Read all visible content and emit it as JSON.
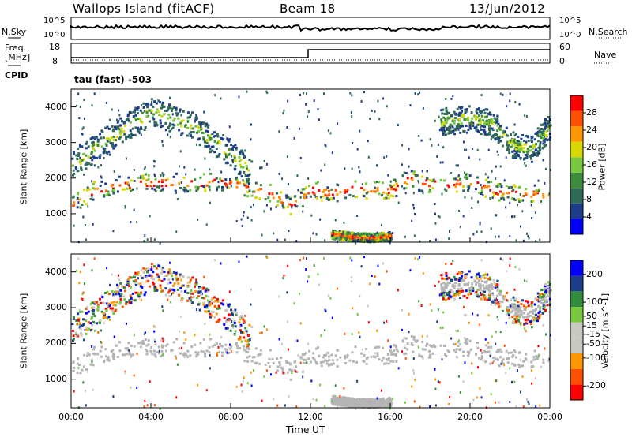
{
  "header": {
    "site": "Wallops Island (fitACF)",
    "beam": "Beam 18",
    "date": "13/Jun/2012"
  },
  "top_panels": {
    "nsky_label": "N.Sky",
    "nsearch_label": "N.Search",
    "nsky_ticks": [
      "10^5",
      "10^0"
    ],
    "nsearch_ticks": [
      "10^5",
      "10^0"
    ],
    "freq_label_line1": "Freq.",
    "freq_label_line2": "[MHz]",
    "freq_ticks": [
      "18",
      "8"
    ],
    "nave_label": "Nave",
    "nave_ticks": [
      "60",
      "0"
    ],
    "cpid_label": "CPID",
    "cpid_text": "tau (fast) -503"
  },
  "colors": {
    "power_scale": [
      "#0000ff",
      "#1e3c8c",
      "#2f6a57",
      "#3d8c3c",
      "#76c83c",
      "#d8d800",
      "#ff9600",
      "#ff5000",
      "#ff0000"
    ],
    "velocity_scale": [
      "#ff0000",
      "#ff5000",
      "#ff9600",
      "#c8c8c0",
      "#c8c8c0",
      "#76c83c",
      "#2f8c3c",
      "#1e3c8c",
      "#0000ff"
    ],
    "ground_scatter": "#b4b4b4"
  },
  "chart_data": [
    {
      "type": "heatmap",
      "title": "",
      "xlabel": "Time UT",
      "ylabel": "Slant Range [km]",
      "x_ticks": [
        "00:00",
        "04:00",
        "08:00",
        "12:00",
        "16:00",
        "20:00",
        "00:00"
      ],
      "y_ticks": [
        1000,
        2000,
        3000,
        4000
      ],
      "ylim": [
        200,
        4500
      ],
      "xlim_hours": [
        0,
        24
      ],
      "colorbar": {
        "label": "Power [dB]",
        "ticks": [
          4,
          8,
          12,
          16,
          20,
          24,
          28
        ],
        "range": [
          0,
          32
        ]
      },
      "bands": [
        {
          "name": "main",
          "points": [
            [
              0,
              1250
            ],
            [
              1,
              1650
            ],
            [
              2,
              1800
            ],
            [
              4,
              1900
            ],
            [
              6,
              1900
            ],
            [
              8,
              1900
            ],
            [
              10,
              1600
            ],
            [
              11,
              1250
            ],
            [
              11.6,
              1500
            ],
            [
              12,
              1700
            ],
            [
              13,
              1600
            ],
            [
              14,
              1700
            ],
            [
              16,
              1700
            ],
            [
              17,
              2000
            ],
            [
              18,
              1850
            ],
            [
              20,
              1900
            ],
            [
              21,
              1700
            ],
            [
              22,
              1600
            ],
            [
              24,
              1550
            ]
          ]
        },
        {
          "name": "upper",
          "points": [
            [
              0,
              2400
            ],
            [
              2,
              3200
            ],
            [
              4,
              3900
            ],
            [
              6,
              3500
            ],
            [
              8,
              2700
            ],
            [
              9,
              2200
            ]
          ]
        },
        {
          "name": "late",
          "points": [
            [
              18.5,
              3600
            ],
            [
              20,
              3700
            ],
            [
              21,
              3600
            ],
            [
              22,
              3000
            ],
            [
              23,
              2800
            ],
            [
              24,
              3500
            ]
          ]
        },
        {
          "name": "low",
          "points": [
            [
              13,
              450
            ],
            [
              14,
              380
            ],
            [
              15,
              350
            ],
            [
              16,
              400
            ]
          ]
        }
      ]
    },
    {
      "type": "heatmap",
      "title": "",
      "xlabel": "Time UT",
      "ylabel": "Slant Range [km]",
      "x_ticks": [
        "00:00",
        "04:00",
        "08:00",
        "12:00",
        "16:00",
        "20:00",
        "00:00"
      ],
      "y_ticks": [
        1000,
        2000,
        3000,
        4000
      ],
      "ylim": [
        200,
        4500
      ],
      "xlim_hours": [
        0,
        24
      ],
      "colorbar": {
        "label": "Velocity [m s^-1]",
        "ticks": [
          -200,
          -100,
          -50,
          -15,
          15,
          50,
          100,
          200
        ],
        "range": [
          -250,
          250
        ]
      }
    }
  ],
  "xaxis_title": "Time UT",
  "x_ticks": [
    "00:00",
    "04:00",
    "08:00",
    "12:00",
    "16:00",
    "20:00",
    "00:00"
  ]
}
